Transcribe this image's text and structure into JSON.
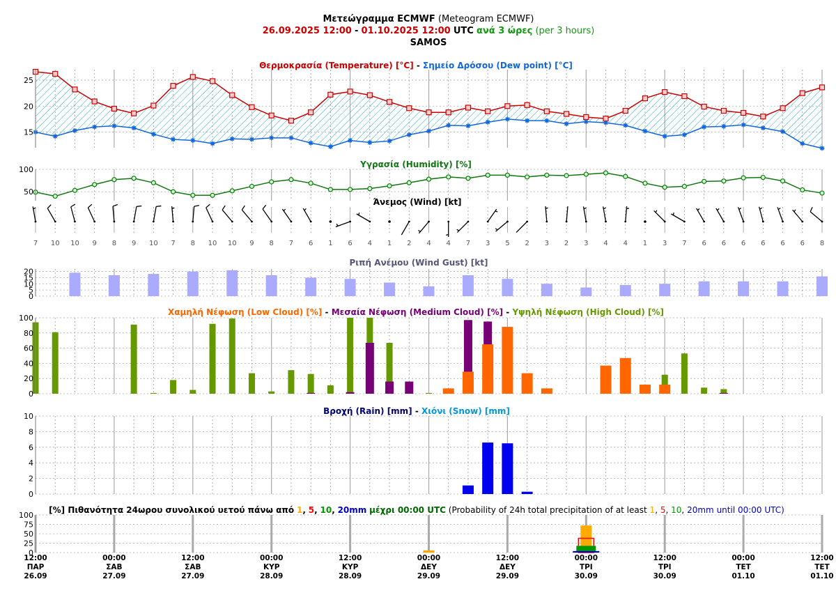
{
  "header": {
    "title_bold": "Μετεώγραμμα ECMWF",
    "title_normal": "(Meteogram ECMWF)",
    "start": "26.09.2025 12:00",
    "dash": "-",
    "end": "01.10.2025 12:00",
    "utc": "UTC",
    "step_gr": "ανά 3 ώρες",
    "step_en": "(per 3 hours)",
    "location": "SAMOS"
  },
  "colors": {
    "temp": "#cc0000",
    "dew": "#1166dd",
    "humidity": "#117711",
    "gust": "#aaaaff",
    "gust_title": "#555577",
    "low_cloud": "#ff6600",
    "mid_cloud": "#770077",
    "high_cloud": "#669900",
    "rain": "#0000ee",
    "rain_title": "#000077",
    "snow": "#0099dd",
    "p1": "#ffaa00",
    "p5": "#ff0000",
    "p10": "#009900",
    "p20": "#0000cc"
  },
  "chart_data": [
    {
      "type": "line",
      "id": "temperature",
      "title_temp": "Θερμοκρασία (Temperature) [°C]",
      "sep": "-",
      "title_dew": "Σημείο Δρόσου (Dew point) [°C]",
      "ylim": [
        12,
        27
      ],
      "yticks": [
        15,
        20,
        25
      ],
      "series": [
        {
          "name": "Θερμοκρασία (Temperature) [°C]",
          "values": [
            26.6,
            26.2,
            23.2,
            20.9,
            19.5,
            18.6,
            20.1,
            23.9,
            25.6,
            24.8,
            22.1,
            19.8,
            18.2,
            17.2,
            18.8,
            22.2,
            22.8,
            22.1,
            20.8,
            19.6,
            18.8,
            18.8,
            19.7,
            19.0,
            20.0,
            20.2,
            19.0,
            18.5,
            17.9,
            17.6,
            19.1,
            21.5,
            22.7,
            21.9,
            19.9,
            19.1,
            18.7,
            18.0,
            19.6,
            22.5,
            23.6
          ]
        },
        {
          "name": "Σημείο Δρόσου (Dew point) [°C]",
          "values": [
            15.0,
            14.2,
            15.3,
            16.0,
            16.2,
            15.8,
            14.6,
            13.6,
            13.4,
            12.8,
            13.7,
            13.6,
            13.9,
            13.9,
            12.9,
            12.2,
            13.4,
            13.0,
            13.3,
            14.5,
            15.2,
            16.3,
            16.2,
            16.9,
            17.5,
            17.2,
            17.2,
            16.6,
            17.0,
            16.8,
            16.3,
            15.2,
            14.2,
            14.5,
            16.0,
            16.1,
            16.4,
            15.8,
            15.1,
            12.8,
            11.9
          ]
        }
      ]
    },
    {
      "type": "line",
      "id": "humidity",
      "title": "Υγρασία (Humidity) [%]",
      "ylim": [
        30,
        100
      ],
      "yticks": [
        50,
        100
      ],
      "values": [
        49,
        40,
        53,
        66,
        77,
        80,
        70,
        50,
        42,
        42,
        52,
        62,
        72,
        77,
        69,
        55,
        55,
        57,
        63,
        70,
        78,
        83,
        80,
        87,
        87,
        83,
        87,
        86,
        89,
        92,
        84,
        69,
        60,
        62,
        73,
        74,
        81,
        82,
        74,
        54,
        47
      ]
    },
    {
      "type": "table",
      "id": "wind",
      "title": "Άνεμος (Wind) [kt]",
      "speeds": [
        7,
        10,
        10,
        9,
        8,
        9,
        10,
        7,
        8,
        10,
        10,
        9,
        8,
        7,
        6,
        1,
        6,
        4,
        1,
        2,
        4,
        4,
        7,
        3,
        5,
        2,
        3,
        2,
        3,
        4,
        4,
        1,
        3,
        7,
        6,
        6,
        6,
        6,
        6,
        6,
        8
      ],
      "directions_deg": [
        350,
        330,
        345,
        335,
        355,
        10,
        10,
        355,
        5,
        335,
        320,
        320,
        325,
        325,
        330,
        90,
        250,
        300,
        90,
        210,
        220,
        180,
        225,
        35,
        230,
        225,
        355,
        5,
        350,
        350,
        5,
        90,
        315,
        300,
        330,
        330,
        340,
        345,
        340,
        320,
        310
      ]
    },
    {
      "type": "bar",
      "id": "gust",
      "title": "Ριπή Ανέμου (Wind Gust) [kt]",
      "ylim": [
        0,
        22
      ],
      "yticks": [
        0,
        5,
        10,
        15,
        20
      ],
      "values": [
        null,
        19,
        17,
        18,
        20,
        21,
        17,
        15,
        14,
        11,
        8,
        17,
        14,
        10,
        7,
        9,
        10,
        12,
        12,
        12,
        16
      ]
    },
    {
      "type": "bar",
      "id": "clouds",
      "title_low": "Χαμηλή Νέφωση (Low Cloud) [%]",
      "title_mid": "Μεσαία Νέφωση (Medium Cloud) [%]",
      "title_high": "Υψηλή Νέφωση (High Cloud) [%]",
      "sep": "-",
      "ylim": [
        0,
        100
      ],
      "yticks": [
        0,
        20,
        40,
        60,
        80,
        100
      ],
      "series": [
        {
          "name": "Χαμηλή Νέφωση (Low Cloud) [%]",
          "values": [
            0,
            0,
            0,
            0,
            0,
            0,
            0,
            0,
            0,
            0,
            0,
            0,
            0,
            0,
            0,
            0,
            0,
            0,
            0,
            0,
            0,
            7,
            29,
            65,
            88,
            27,
            7,
            0,
            0,
            37,
            47,
            12,
            12,
            0,
            0,
            0,
            0,
            0,
            0,
            0,
            0
          ]
        },
        {
          "name": "Μεσαία Νέφωση (Medium Cloud) [%]",
          "values": [
            0,
            0,
            0,
            0,
            0,
            0,
            0,
            0,
            0,
            0,
            0,
            0,
            0,
            0,
            1,
            0,
            2,
            67,
            16,
            16,
            0,
            0,
            97,
            95,
            0,
            0,
            0,
            0,
            0,
            0,
            0,
            0,
            0,
            0,
            0,
            1,
            0,
            0,
            0,
            0,
            0
          ]
        },
        {
          "name": "Υψηλή Νέφωση (High Cloud) [%]",
          "values": [
            94,
            81,
            0,
            0,
            0,
            91,
            1,
            18,
            5,
            92,
            99,
            27,
            3,
            31,
            26,
            11,
            100,
            100,
            67,
            0,
            1,
            0,
            0,
            0,
            0,
            0,
            0,
            0,
            0,
            0,
            0,
            0,
            25,
            53,
            8,
            6,
            0,
            0,
            0,
            0,
            0
          ]
        }
      ]
    },
    {
      "type": "bar",
      "id": "precip",
      "title_rain": "Βροχή (Rain) [mm]",
      "sep": "-",
      "title_snow": "Χιόνι (Snow) [mm]",
      "ylim": [
        0,
        10
      ],
      "yticks": [
        0,
        2,
        4,
        6,
        8,
        10
      ],
      "series": [
        {
          "name": "Βροχή (Rain) [mm]",
          "values": [
            0,
            0,
            0,
            0,
            0,
            0,
            0,
            0,
            0,
            0,
            0,
            0,
            0,
            0,
            0,
            0,
            0,
            0,
            0,
            0,
            0,
            0,
            1.1,
            6.6,
            6.5,
            0.3,
            0,
            0,
            0,
            0,
            0,
            0,
            0,
            0,
            0,
            0,
            0,
            0,
            0,
            0,
            0
          ]
        }
      ]
    },
    {
      "type": "bar",
      "id": "probability",
      "title_a": "[%] Πιθανότητα 24ωρου συνολικού υετού πάνω από",
      "title_b": "μέχρι 00:00 UTC",
      "title_c": "(Probability of 24h total precipitation of at least",
      "title_d": "until 00:00 UTC)",
      "thr1": "1",
      "thr5": "5",
      "thr10": "10",
      "thr20": "20mm",
      "comma": ",",
      "ylim": [
        0,
        100
      ],
      "yticks": [
        0,
        25,
        50,
        75,
        100
      ],
      "categories": [
        "27.09",
        "28.09",
        "29.09",
        "30.09",
        "01.10"
      ],
      "series": [
        {
          "name": "1",
          "values": [
            0,
            0,
            6,
            72,
            0
          ]
        },
        {
          "name": "5",
          "values": [
            0,
            0,
            0,
            38,
            0
          ]
        },
        {
          "name": "10",
          "values": [
            0,
            0,
            0,
            18,
            0
          ]
        },
        {
          "name": "20mm",
          "values": [
            0,
            0,
            0,
            4,
            0
          ]
        }
      ]
    }
  ],
  "x_axis": [
    {
      "time": "12:00",
      "day": "ΠΑΡ",
      "date": "26.09"
    },
    {
      "time": "00:00",
      "day": "ΣΑΒ",
      "date": "27.09"
    },
    {
      "time": "12:00",
      "day": "ΣΑΒ",
      "date": "27.09"
    },
    {
      "time": "00:00",
      "day": "ΚΥΡ",
      "date": "28.09"
    },
    {
      "time": "12:00",
      "day": "ΚΥΡ",
      "date": "28.09"
    },
    {
      "time": "00:00",
      "day": "ΔΕΥ",
      "date": "29.09"
    },
    {
      "time": "12:00",
      "day": "ΔΕΥ",
      "date": "29.09"
    },
    {
      "time": "00:00",
      "day": "ΤΡΙ",
      "date": "30.09"
    },
    {
      "time": "12:00",
      "day": "ΤΡΙ",
      "date": "30.09"
    },
    {
      "time": "00:00",
      "day": "ΤΕΤ",
      "date": "01.10"
    },
    {
      "time": "12:00",
      "day": "ΤΕΤ",
      "date": "01.10"
    }
  ]
}
